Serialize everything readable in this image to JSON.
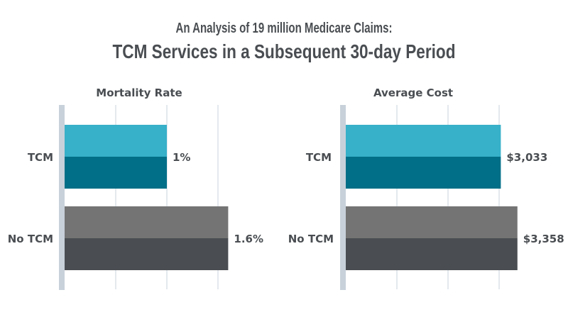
{
  "title_line1": "An Analysis of 19 million Medicare Claims:",
  "title_line2": "TCM Services in a Subsequent 30-day Period",
  "colors": {
    "tcm_light": "#37b0c9",
    "tcm_dark": "#006f87",
    "no_tcm_light": "#747474",
    "no_tcm_dark": "#4a4e52",
    "axis": "#c8d1da",
    "grid": "#d6dde4",
    "text": "#4a4e52"
  },
  "chart_data": [
    {
      "type": "bar",
      "orientation": "horizontal",
      "title": "Mortality Rate",
      "categories": [
        "TCM",
        "No TCM"
      ],
      "values": [
        1.0,
        1.6
      ],
      "data_labels": [
        "1%",
        "1.6%"
      ],
      "unit": "%",
      "xlim": [
        0,
        1.75
      ],
      "gridlines": [
        0.5,
        1.0,
        1.5
      ],
      "grid": true
    },
    {
      "type": "bar",
      "orientation": "horizontal",
      "title": "Average Cost",
      "categories": [
        "TCM",
        "No TCM"
      ],
      "values": [
        3033,
        3358
      ],
      "data_labels": [
        "$3,033",
        "$3,358"
      ],
      "unit": "$",
      "xlim": [
        0,
        3500
      ],
      "gridlines": [
        1000,
        2000,
        3000
      ],
      "grid": true
    }
  ]
}
